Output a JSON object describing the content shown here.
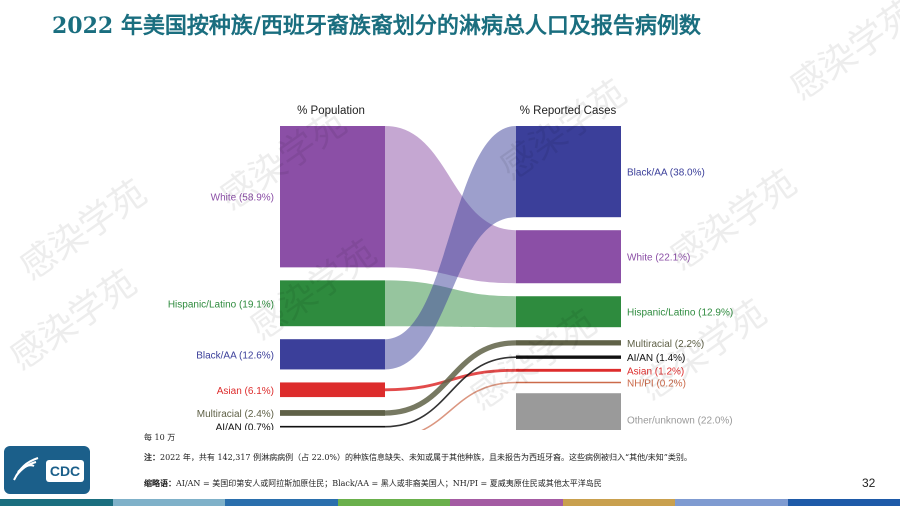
{
  "title": "2022 年美国按种族/西班牙裔族裔划分的淋病总人口及报告病例数",
  "watermark_text": "感染学苑",
  "chart_data": {
    "type": "sankey",
    "left_header": "% Population",
    "right_header": "% Reported Cases",
    "population": [
      {
        "name": "White",
        "label": "White (58.9%)",
        "value": 58.9,
        "color": "#8b4fa6"
      },
      {
        "name": "Hispanic/Latino",
        "label": "Hispanic/Latino (19.1%)",
        "value": 19.1,
        "color": "#2e8b3e"
      },
      {
        "name": "Black/AA",
        "label": "Black/AA (12.6%)",
        "value": 12.6,
        "color": "#3b3f9a"
      },
      {
        "name": "Asian",
        "label": "Asian (6.1%)",
        "value": 6.1,
        "color": "#dd2c2c"
      },
      {
        "name": "Multiracial",
        "label": "Multiracial (2.4%)",
        "value": 2.4,
        "color": "#5f6147"
      },
      {
        "name": "AI/AN",
        "label": "AI/AN (0.7%)",
        "value": 0.7,
        "color": "#111111"
      },
      {
        "name": "NH/PI",
        "label": "NH/PI (0.2%)",
        "value": 0.2,
        "color": "#cc6a4a"
      }
    ],
    "reported_cases": [
      {
        "name": "Black/AA",
        "label": "Black/AA (38.0%)",
        "value": 38.0,
        "color": "#3b3f9a"
      },
      {
        "name": "White",
        "label": "White (22.1%)",
        "value": 22.1,
        "color": "#8b4fa6"
      },
      {
        "name": "Hispanic/Latino",
        "label": "Hispanic/Latino (12.9%)",
        "value": 12.9,
        "color": "#2e8b3e"
      },
      {
        "name": "Multiracial",
        "label": "Multiracial (2.2%)",
        "value": 2.2,
        "color": "#5f6147"
      },
      {
        "name": "AI/AN",
        "label": "AI/AN (1.4%)",
        "value": 1.4,
        "color": "#111111"
      },
      {
        "name": "Asian",
        "label": "Asian (1.2%)",
        "value": 1.2,
        "color": "#dd2c2c"
      },
      {
        "name": "NH/PI",
        "label": "NH/PI (0.2%)",
        "value": 0.2,
        "color": "#cc6a4a"
      },
      {
        "name": "Other/unknown",
        "label": "Other/unknown (22.0%)",
        "value": 22.0,
        "color": "#9a9a9a"
      }
    ]
  },
  "footnotes": {
    "unit": "每 10 万",
    "note_label": "注：",
    "note": "2022 年，共有 142,317 例淋病病例（占 22.0%）的种族信息缺失、未知或属于其他种族，且未报告为西班牙裔。这些病例被归入“其他/未知”类别。",
    "abbr_label": "缩略语：",
    "abbr": "AI/AN = 美国印第安人或阿拉斯加原住民；Black/AA = 黑人或非裔美国人；NH/PI = 夏威夷原住民或其他太平洋岛民"
  },
  "page_number": "32",
  "logo_text": "CDC",
  "colors": {
    "title": "#1a6e7f",
    "bottom_bar": [
      "#1a6e7f",
      "#7fb1c9",
      "#2a6fad",
      "#6ab04c",
      "#a45ba3",
      "#c9a04e",
      "#7f9bd1",
      "#1e5aa8"
    ]
  }
}
